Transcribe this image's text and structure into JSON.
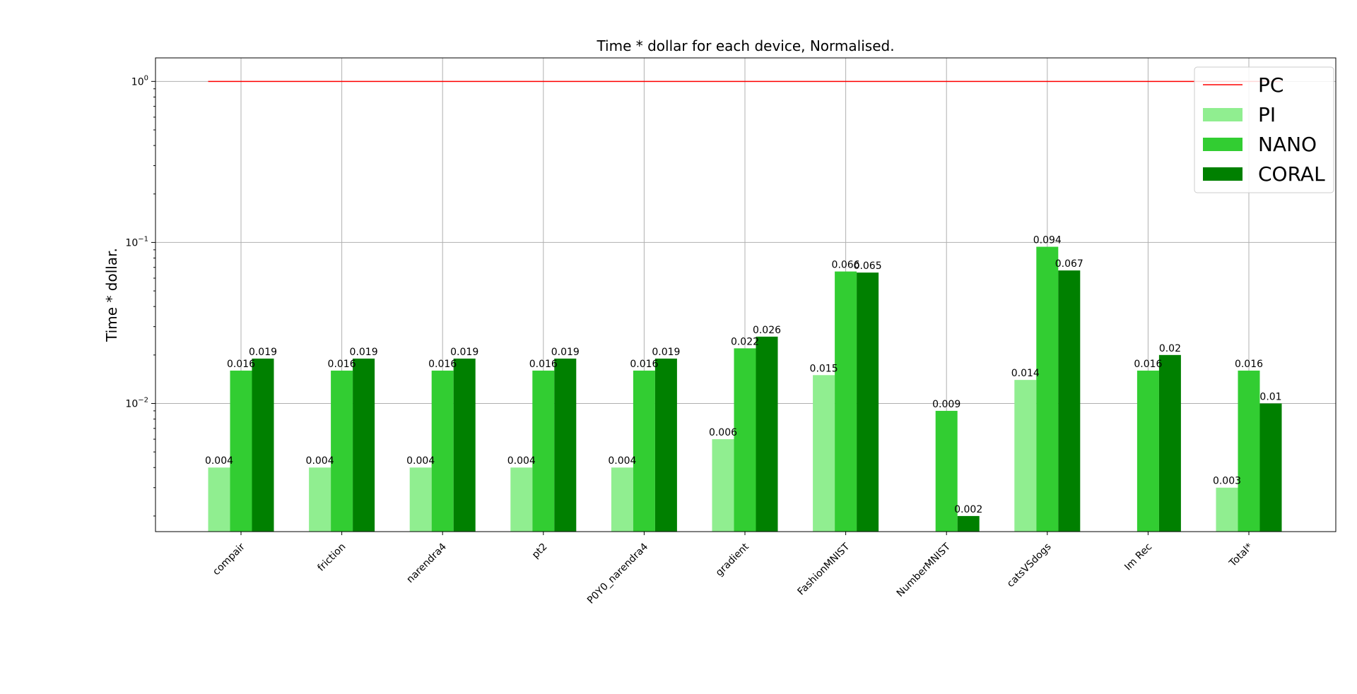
{
  "chart_data": {
    "type": "bar",
    "title": "Time * dollar for each device, Normalised.",
    "xlabel": "",
    "ylabel": "Time * dollar.",
    "yscale": "log",
    "ylim": [
      0.0016,
      1.4
    ],
    "yticks": [
      {
        "value": 1,
        "base": "10",
        "exp": "0"
      },
      {
        "value": 0.1,
        "base": "10",
        "exp": "−1"
      },
      {
        "value": 0.01,
        "base": "10",
        "exp": "−2"
      }
    ],
    "grid": true,
    "legend_position": "top-right",
    "categories": [
      "compair",
      "friction",
      "narendra4",
      "pt2",
      "P0Y0_narendra4",
      "gradient",
      "FashionMNIST",
      "NumberMNIST",
      "catsVSdogs",
      "Im Rec",
      "Total*"
    ],
    "reference_line": {
      "name": "PC",
      "value": 1,
      "color": "#ff0000"
    },
    "series": [
      {
        "name": "PI",
        "color": "#90ee90",
        "values": [
          0.004,
          0.004,
          0.004,
          0.004,
          0.004,
          0.006,
          0.015,
          null,
          0.014,
          null,
          0.003
        ],
        "labels": [
          "0.004",
          "0.004",
          "0.004",
          "0.004",
          "0.004",
          "0.006",
          "0.015",
          "",
          "0.014",
          "",
          "0.003"
        ]
      },
      {
        "name": "NANO",
        "color": "#32cd32",
        "values": [
          0.016,
          0.016,
          0.016,
          0.016,
          0.016,
          0.022,
          0.066,
          0.009,
          0.094,
          0.016,
          0.016
        ],
        "labels": [
          "0.016",
          "0.016",
          "0.016",
          "0.016",
          "0.016",
          "0.022",
          "0.066",
          "0.009",
          "0.094",
          "0.016",
          "0.016"
        ]
      },
      {
        "name": "CORAL",
        "color": "#008000",
        "values": [
          0.019,
          0.019,
          0.019,
          0.019,
          0.019,
          0.026,
          0.065,
          0.002,
          0.067,
          0.02,
          0.01
        ],
        "labels": [
          "0.019",
          "0.019",
          "0.019",
          "0.019",
          "0.019",
          "0.026",
          "0.065",
          "0.002",
          "0.067",
          "0.02",
          "0.01"
        ]
      }
    ]
  }
}
